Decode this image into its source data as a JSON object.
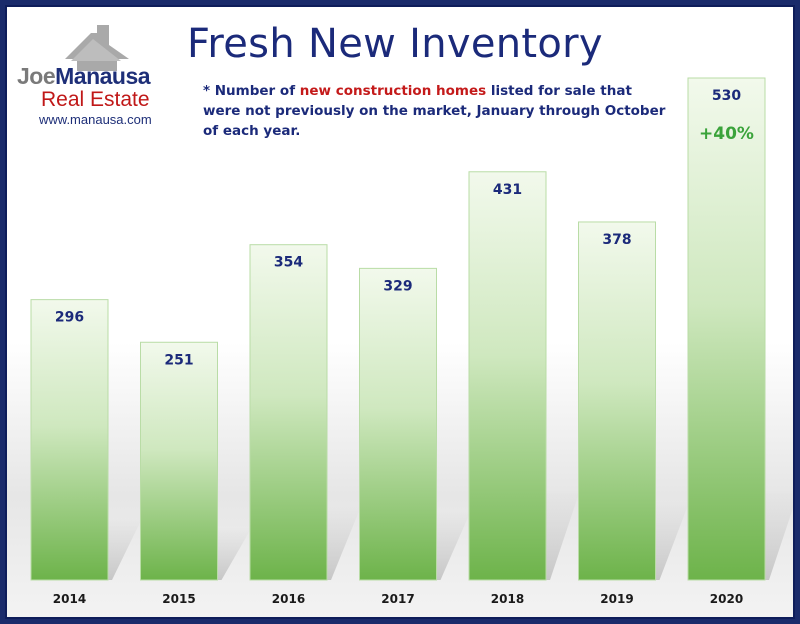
{
  "logo": {
    "name_first": "Joe",
    "name_last": "Manausa",
    "company": "Real Estate",
    "website": "www.manausa.com"
  },
  "title": "Fresh New Inventory",
  "subtitle": {
    "prefix": "* Number of ",
    "highlight": "new construction homes",
    "suffix": " listed for sale that were not previously on the market, January through October of each year."
  },
  "colors": {
    "title": "#1b2a7a",
    "highlight": "#c41a1a",
    "bar_top": "#f2f9ec",
    "bar_bottom": "#6db34a",
    "annotation": "#3aa33a",
    "frame": "#1a2b6b"
  },
  "chart_data": {
    "type": "bar",
    "categories": [
      "2014",
      "2015",
      "2016",
      "2017",
      "2018",
      "2019",
      "2020"
    ],
    "values": [
      296,
      251,
      354,
      329,
      431,
      378,
      530
    ],
    "data_labels": [
      "296",
      "251",
      "354",
      "329",
      "431",
      "378",
      "530"
    ],
    "annotation": {
      "category": "2020",
      "text": "+40%"
    },
    "title": "Fresh New Inventory",
    "xlabel": "",
    "ylabel": "",
    "ylim": [
      0,
      530
    ],
    "grid": false,
    "legend": "none"
  }
}
